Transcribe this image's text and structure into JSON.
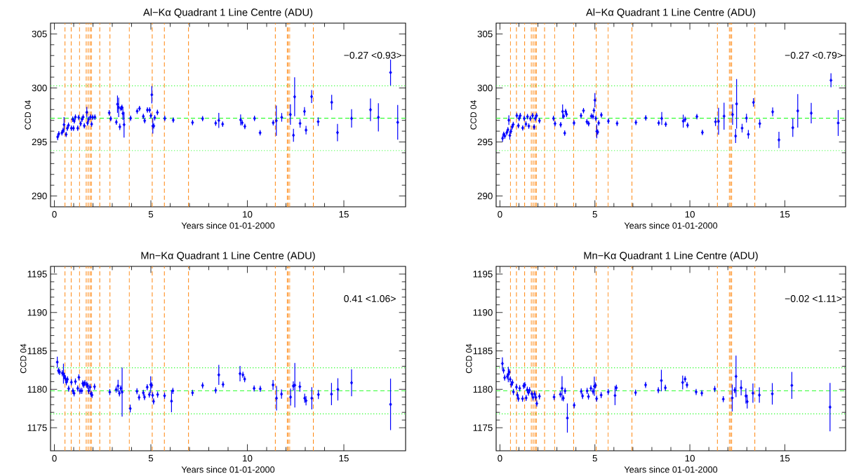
{
  "chart_data": [
    {
      "type": "scatter",
      "title": "Al−Kα Quadrant 1 Line Centre (ADU)",
      "xlabel": "Years since 01-01-2000",
      "ylabel": "CCD 04",
      "annotations": [
        "−0.27 <0.93>"
      ],
      "marker": "diamond",
      "color": "#0000ff",
      "x": [
        0.17,
        0.23,
        0.39,
        0.45,
        0.5,
        0.61,
        0.67,
        0.73,
        0.88,
        0.95,
        0.99,
        1.03,
        1.09,
        1.21,
        1.26,
        1.36,
        1.43,
        1.49,
        1.55,
        1.68,
        1.72,
        1.77,
        1.87,
        1.93,
        1.98,
        2.1,
        2.84,
        2.92,
        3.21,
        3.27,
        3.33,
        3.39,
        3.45,
        3.5,
        3.55,
        3.61,
        3.95,
        4.29,
        4.41,
        4.61,
        4.68,
        4.82,
        4.94,
        5.0,
        5.05,
        5.1,
        5.15,
        5.2,
        5.34,
        5.72,
        6.16,
        7.16,
        7.68,
        8.36,
        8.52,
        8.72,
        9.65,
        9.73,
        9.87,
        10.37,
        10.66,
        11.34,
        11.5,
        11.78,
        12.23,
        12.39,
        12.45,
        12.73,
        12.96,
        13.04,
        13.33,
        13.67,
        14.37,
        14.67,
        15.4,
        16.38,
        16.79,
        17.42,
        17.79
      ],
      "values": [
        295.47,
        295.75,
        295.85,
        296.06,
        296.6,
        295.7,
        296.27,
        296.55,
        296.27,
        297.1,
        296.27,
        296.95,
        297.3,
        296.27,
        297.27,
        296.7,
        297.1,
        297.3,
        296.5,
        297.75,
        296.76,
        297.1,
        297.3,
        296.65,
        297.28,
        297.3,
        297.7,
        297.16,
        296.84,
        298.5,
        298.2,
        296.4,
        298.1,
        298.2,
        297.64,
        296.6,
        297.2,
        297.85,
        298.1,
        297.37,
        296.97,
        297.96,
        297.96,
        297.43,
        299.37,
        296.48,
        296.48,
        297.24,
        297.73,
        297.18,
        297.03,
        296.8,
        297.16,
        296.74,
        297.0,
        296.65,
        297.05,
        296.78,
        296.44,
        297.18,
        295.85,
        296.78,
        296.97,
        297.28,
        297.54,
        295.62,
        299.18,
        296.72,
        297.83,
        296.1,
        299.2,
        296.88,
        298.67,
        295.87,
        297.18,
        297.98,
        297.28,
        301.43,
        296.82
      ],
      "errors": [
        0.3,
        0.25,
        0.25,
        0.25,
        0.7,
        0.25,
        0.25,
        0.25,
        0.25,
        0.25,
        0.25,
        0.25,
        0.25,
        0.25,
        0.25,
        0.25,
        0.25,
        0.25,
        0.25,
        0.5,
        0.25,
        0.25,
        0.25,
        0.25,
        0.25,
        0.25,
        0.25,
        0.25,
        0.25,
        0.8,
        0.9,
        0.3,
        0.25,
        0.25,
        0.6,
        1.2,
        0.25,
        0.25,
        0.25,
        0.25,
        0.25,
        0.25,
        0.25,
        0.25,
        0.8,
        0.7,
        0.25,
        0.25,
        0.25,
        0.25,
        0.25,
        0.25,
        0.25,
        0.25,
        0.7,
        0.25,
        0.5,
        0.25,
        0.25,
        0.25,
        0.25,
        0.25,
        1.4,
        0.4,
        0.95,
        0.6,
        1.8,
        0.4,
        0.4,
        0.4,
        0.6,
        0.4,
        0.7,
        0.8,
        0.85,
        1.05,
        1.3,
        1.2,
        1.6
      ],
      "xlim": [
        -0.2,
        18.2
      ],
      "ylim": [
        289,
        306
      ],
      "xticks": [
        0,
        5,
        10,
        15
      ],
      "yticks": [
        290,
        295,
        300,
        305
      ],
      "ref_lines": [
        {
          "axis": "y",
          "value": 297.2,
          "color": "#33ff33",
          "line_style": "dashed"
        },
        {
          "axis": "y",
          "value": 300.2,
          "color": "#33ff33",
          "line_style": "dotted"
        },
        {
          "axis": "y",
          "value": 294.2,
          "color": "#33ff33",
          "line_style": "dotted"
        },
        {
          "axis": "x",
          "value": 0.55,
          "color": "#ff8c1a",
          "line_style": "dashed"
        },
        {
          "axis": "x",
          "value": 0.87,
          "color": "#ff8c1a",
          "line_style": "dashed"
        },
        {
          "axis": "x",
          "value": 1.3,
          "color": "#ff8c1a",
          "line_style": "dashed"
        },
        {
          "axis": "x",
          "value": 1.65,
          "color": "#ff8c1a",
          "line_style": "dashed"
        },
        {
          "axis": "x",
          "value": 1.75,
          "color": "#ff8c1a",
          "line_style": "dashed"
        },
        {
          "axis": "x",
          "value": 1.85,
          "color": "#ff8c1a",
          "line_style": "dashed"
        },
        {
          "axis": "x",
          "value": 1.92,
          "color": "#ff8c1a",
          "line_style": "dashed"
        },
        {
          "axis": "x",
          "value": 2.35,
          "color": "#ff8c1a",
          "line_style": "dashed"
        },
        {
          "axis": "x",
          "value": 2.88,
          "color": "#ff8c1a",
          "line_style": "dashed"
        },
        {
          "axis": "x",
          "value": 3.88,
          "color": "#ff8c1a",
          "line_style": "dashed"
        },
        {
          "axis": "x",
          "value": 5.07,
          "color": "#ff8c1a",
          "line_style": "dashed"
        },
        {
          "axis": "x",
          "value": 5.7,
          "color": "#ff8c1a",
          "line_style": "dashed"
        },
        {
          "axis": "x",
          "value": 6.95,
          "color": "#ff8c1a",
          "line_style": "dashed"
        },
        {
          "axis": "x",
          "value": 11.45,
          "color": "#ff8c1a",
          "line_style": "dashed"
        },
        {
          "axis": "x",
          "value": 12.07,
          "color": "#ff8c1a",
          "line_style": "dashed"
        },
        {
          "axis": "x",
          "value": 12.13,
          "color": "#ff8c1a",
          "line_style": "dashed"
        },
        {
          "axis": "x",
          "value": 12.2,
          "color": "#ff8c1a",
          "line_style": "dashed"
        },
        {
          "axis": "x",
          "value": 13.42,
          "color": "#ff8c1a",
          "line_style": "dashed"
        }
      ]
    },
    {
      "type": "scatter",
      "title": "Al−Kα Quadrant 1 Line Centre (ADU)",
      "xlabel": "Years since 01-01-2000",
      "ylabel": "CCD 04",
      "annotations": [
        "−0.27 <0.79>"
      ],
      "marker": "diamond",
      "color": "#0000ff",
      "x": [
        0.14,
        0.2,
        0.26,
        0.36,
        0.42,
        0.47,
        0.52,
        0.58,
        0.64,
        0.7,
        0.89,
        0.97,
        1.01,
        1.07,
        1.2,
        1.28,
        1.37,
        1.45,
        1.52,
        1.6,
        1.72,
        1.8,
        1.86,
        1.93,
        2.08,
        2.82,
        2.9,
        3.2,
        3.3,
        3.36,
        3.41,
        3.46,
        3.51,
        3.9,
        4.27,
        4.4,
        4.58,
        4.67,
        4.81,
        4.9,
        4.95,
        5.0,
        5.05,
        5.1,
        5.15,
        5.2,
        5.34,
        5.71,
        6.17,
        7.16,
        7.68,
        8.36,
        8.52,
        8.73,
        9.65,
        9.75,
        9.88,
        10.37,
        10.66,
        11.35,
        11.51,
        11.8,
        12.25,
        12.41,
        12.46,
        12.75,
        12.98,
        13.08,
        13.35,
        13.68,
        14.36,
        14.69,
        15.42,
        15.68,
        16.39,
        17.43,
        17.81
      ],
      "values": [
        295.34,
        295.71,
        295.55,
        295.86,
        296.13,
        297.02,
        295.61,
        295.99,
        296.39,
        296.62,
        297.44,
        296.51,
        297.18,
        297.44,
        296.3,
        297.18,
        296.66,
        297.35,
        296.47,
        297.18,
        297.44,
        296.39,
        297.18,
        297.44,
        296.97,
        297.18,
        296.7,
        296.6,
        297.82,
        297.39,
        295.82,
        297.82,
        297.56,
        296.76,
        297.44,
        297.9,
        296.87,
        296.7,
        297.39,
        297.35,
        297.92,
        298.87,
        297.18,
        295.99,
        295.92,
        296.76,
        297.5,
        296.93,
        296.72,
        296.81,
        297.23,
        296.76,
        297.18,
        296.64,
        296.93,
        297.08,
        296.55,
        297.35,
        295.88,
        296.87,
        296.91,
        297.39,
        297.54,
        295.55,
        298.53,
        296.28,
        297.21,
        295.71,
        298.66,
        296.7,
        297.79,
        295.19,
        296.32,
        297.88,
        297.67,
        300.71,
        296.76
      ],
      "errors": [
        0.3,
        0.25,
        0.25,
        0.25,
        0.25,
        0.45,
        0.4,
        0.25,
        0.25,
        0.25,
        0.25,
        0.25,
        0.25,
        0.25,
        0.25,
        0.25,
        0.25,
        0.25,
        0.25,
        0.25,
        0.25,
        0.25,
        0.25,
        0.25,
        0.25,
        0.25,
        0.25,
        0.25,
        0.65,
        0.25,
        0.25,
        0.25,
        0.25,
        0.25,
        0.25,
        0.25,
        0.25,
        0.25,
        0.25,
        0.25,
        0.25,
        0.65,
        0.25,
        0.65,
        0.25,
        0.25,
        0.25,
        0.25,
        0.25,
        0.25,
        0.25,
        0.25,
        0.6,
        0.25,
        0.6,
        0.25,
        0.25,
        0.25,
        0.25,
        0.4,
        1.25,
        1.25,
        0.95,
        0.65,
        2.3,
        0.4,
        0.4,
        0.4,
        0.4,
        0.4,
        0.4,
        0.75,
        0.85,
        1.55,
        0.95,
        0.65,
        1.2
      ],
      "xlim": [
        -0.2,
        18.2
      ],
      "ylim": [
        289,
        306
      ],
      "xticks": [
        0,
        5,
        10,
        15
      ],
      "yticks": [
        290,
        295,
        300,
        305
      ],
      "ref_lines": [
        {
          "axis": "y",
          "value": 297.2,
          "color": "#33ff33",
          "line_style": "dashed"
        },
        {
          "axis": "y",
          "value": 300.2,
          "color": "#33ff33",
          "line_style": "dotted"
        },
        {
          "axis": "y",
          "value": 294.2,
          "color": "#33ff33",
          "line_style": "dotted"
        },
        {
          "axis": "x",
          "value": 0.55,
          "color": "#ff8c1a",
          "line_style": "dashed"
        },
        {
          "axis": "x",
          "value": 0.87,
          "color": "#ff8c1a",
          "line_style": "dashed"
        },
        {
          "axis": "x",
          "value": 1.3,
          "color": "#ff8c1a",
          "line_style": "dashed"
        },
        {
          "axis": "x",
          "value": 1.65,
          "color": "#ff8c1a",
          "line_style": "dashed"
        },
        {
          "axis": "x",
          "value": 1.75,
          "color": "#ff8c1a",
          "line_style": "dashed"
        },
        {
          "axis": "x",
          "value": 1.85,
          "color": "#ff8c1a",
          "line_style": "dashed"
        },
        {
          "axis": "x",
          "value": 1.92,
          "color": "#ff8c1a",
          "line_style": "dashed"
        },
        {
          "axis": "x",
          "value": 2.35,
          "color": "#ff8c1a",
          "line_style": "dashed"
        },
        {
          "axis": "x",
          "value": 2.88,
          "color": "#ff8c1a",
          "line_style": "dashed"
        },
        {
          "axis": "x",
          "value": 3.88,
          "color": "#ff8c1a",
          "line_style": "dashed"
        },
        {
          "axis": "x",
          "value": 5.07,
          "color": "#ff8c1a",
          "line_style": "dashed"
        },
        {
          "axis": "x",
          "value": 5.7,
          "color": "#ff8c1a",
          "line_style": "dashed"
        },
        {
          "axis": "x",
          "value": 6.95,
          "color": "#ff8c1a",
          "line_style": "dashed"
        },
        {
          "axis": "x",
          "value": 11.45,
          "color": "#ff8c1a",
          "line_style": "dashed"
        },
        {
          "axis": "x",
          "value": 12.07,
          "color": "#ff8c1a",
          "line_style": "dashed"
        },
        {
          "axis": "x",
          "value": 12.13,
          "color": "#ff8c1a",
          "line_style": "dashed"
        },
        {
          "axis": "x",
          "value": 12.2,
          "color": "#ff8c1a",
          "line_style": "dashed"
        },
        {
          "axis": "x",
          "value": 13.42,
          "color": "#ff8c1a",
          "line_style": "dashed"
        }
      ]
    },
    {
      "type": "scatter",
      "title": "Mn−Kα Quadrant 1 Line Centre (ADU)",
      "xlabel": "Years since 01-01-2000",
      "ylabel": "CCD 04",
      "annotations": [
        "0.41 <1.06>"
      ],
      "marker": "diamond",
      "color": "#0000ff",
      "x": [
        0.15,
        0.21,
        0.27,
        0.41,
        0.47,
        0.52,
        0.57,
        0.62,
        0.68,
        0.74,
        0.88,
        0.96,
        1.02,
        1.09,
        1.21,
        1.27,
        1.33,
        1.42,
        1.47,
        1.52,
        1.58,
        1.68,
        1.73,
        1.78,
        1.85,
        1.9,
        1.95,
        2.08,
        2.87,
        3.2,
        3.3,
        3.37,
        3.44,
        3.51,
        3.93,
        4.28,
        4.39,
        4.61,
        4.67,
        4.81,
        4.92,
        4.99,
        5.04,
        5.09,
        5.14,
        5.35,
        5.71,
        6.07,
        6.14,
        7.16,
        7.68,
        8.36,
        8.52,
        8.74,
        9.62,
        9.77,
        9.86,
        10.35,
        10.67,
        11.33,
        11.51,
        11.77,
        12.24,
        12.38,
        12.46,
        12.72,
        12.97,
        13.04,
        13.34,
        13.68,
        14.36,
        14.69,
        15.4,
        17.42
      ],
      "values": [
        1183.54,
        1182.42,
        1182.26,
        1182.1,
        1182.04,
        1181.72,
        1181.4,
        1180.92,
        1181.3,
        1180.09,
        1180.92,
        1179.8,
        1179.48,
        1181.01,
        1180.12,
        1181.56,
        1179.8,
        1179.8,
        1180.76,
        1180.6,
        1180.82,
        1180.6,
        1180.44,
        1179.8,
        1180.28,
        1179.42,
        1179.26,
        1180.34,
        1179.64,
        1179.96,
        1180.44,
        1179.48,
        1180.12,
        1179.64,
        1177.5,
        1179.74,
        1178.94,
        1179.54,
        1178.99,
        1180.28,
        1179.32,
        1180.6,
        1180.53,
        1179.22,
        1178.43,
        1179.32,
        1179.16,
        1178.46,
        1179.8,
        1179.54,
        1180.5,
        1179.86,
        1181.88,
        1180.63,
        1182.04,
        1181.88,
        1181.33,
        1180.12,
        1180.06,
        1180.57,
        1178.84,
        1179.38,
        1178.99,
        1180.44,
        1180.53,
        1180.34,
        1178.84,
        1178.52,
        1178.84,
        1179.32,
        1179.38,
        1179.99,
        1180.85,
        1178.04
      ],
      "errors": [
        0.7,
        0.4,
        0.4,
        0.4,
        1.3,
        0.4,
        0.4,
        0.4,
        0.4,
        0.4,
        0.4,
        0.4,
        0.4,
        0.4,
        0.4,
        0.4,
        0.4,
        0.4,
        0.4,
        0.4,
        0.4,
        0.4,
        0.4,
        0.4,
        0.4,
        0.4,
        0.4,
        0.4,
        0.4,
        0.4,
        0.8,
        0.4,
        0.4,
        3.2,
        0.5,
        0.4,
        0.4,
        0.4,
        0.4,
        0.4,
        0.4,
        1.1,
        0.4,
        0.4,
        0.4,
        0.4,
        0.4,
        1.45,
        0.4,
        0.4,
        0.4,
        0.4,
        1.3,
        0.4,
        1.0,
        0.4,
        0.4,
        0.4,
        0.4,
        0.65,
        1.6,
        0.6,
        1.1,
        0.6,
        2.9,
        0.65,
        0.6,
        0.6,
        1.45,
        0.6,
        1.45,
        1.45,
        1.75,
        3.35
      ],
      "xlim": [
        -0.2,
        18.2
      ],
      "ylim": [
        1172,
        1196
      ],
      "xticks": [
        0,
        5,
        10,
        15
      ],
      "yticks": [
        1175,
        1180,
        1185,
        1190,
        1195
      ],
      "ref_lines": [
        {
          "axis": "y",
          "value": 1179.8,
          "color": "#33ff33",
          "line_style": "dashed"
        },
        {
          "axis": "y",
          "value": 1182.8,
          "color": "#33ff33",
          "line_style": "dotted"
        },
        {
          "axis": "y",
          "value": 1176.8,
          "color": "#33ff33",
          "line_style": "dotted"
        },
        {
          "axis": "x",
          "value": 0.55,
          "color": "#ff8c1a",
          "line_style": "dashed"
        },
        {
          "axis": "x",
          "value": 0.87,
          "color": "#ff8c1a",
          "line_style": "dashed"
        },
        {
          "axis": "x",
          "value": 1.3,
          "color": "#ff8c1a",
          "line_style": "dashed"
        },
        {
          "axis": "x",
          "value": 1.65,
          "color": "#ff8c1a",
          "line_style": "dashed"
        },
        {
          "axis": "x",
          "value": 1.75,
          "color": "#ff8c1a",
          "line_style": "dashed"
        },
        {
          "axis": "x",
          "value": 1.85,
          "color": "#ff8c1a",
          "line_style": "dashed"
        },
        {
          "axis": "x",
          "value": 1.92,
          "color": "#ff8c1a",
          "line_style": "dashed"
        },
        {
          "axis": "x",
          "value": 2.35,
          "color": "#ff8c1a",
          "line_style": "dashed"
        },
        {
          "axis": "x",
          "value": 2.88,
          "color": "#ff8c1a",
          "line_style": "dashed"
        },
        {
          "axis": "x",
          "value": 3.88,
          "color": "#ff8c1a",
          "line_style": "dashed"
        },
        {
          "axis": "x",
          "value": 5.07,
          "color": "#ff8c1a",
          "line_style": "dashed"
        },
        {
          "axis": "x",
          "value": 5.7,
          "color": "#ff8c1a",
          "line_style": "dashed"
        },
        {
          "axis": "x",
          "value": 6.95,
          "color": "#ff8c1a",
          "line_style": "dashed"
        },
        {
          "axis": "x",
          "value": 11.45,
          "color": "#ff8c1a",
          "line_style": "dashed"
        },
        {
          "axis": "x",
          "value": 12.07,
          "color": "#ff8c1a",
          "line_style": "dashed"
        },
        {
          "axis": "x",
          "value": 12.13,
          "color": "#ff8c1a",
          "line_style": "dashed"
        },
        {
          "axis": "x",
          "value": 12.2,
          "color": "#ff8c1a",
          "line_style": "dashed"
        },
        {
          "axis": "x",
          "value": 13.42,
          "color": "#ff8c1a",
          "line_style": "dashed"
        }
      ]
    },
    {
      "type": "scatter",
      "title": "Mn−Kα Quadrant 1 Line Centre (ADU)",
      "xlabel": "Years since 01-01-2000",
      "ylabel": "CCD 04",
      "annotations": [
        "−0.02 <1.11>"
      ],
      "marker": "diamond",
      "color": "#0000ff",
      "x": [
        0.13,
        0.19,
        0.25,
        0.39,
        0.44,
        0.49,
        0.54,
        0.6,
        0.66,
        0.71,
        0.87,
        0.92,
        0.97,
        1.04,
        1.19,
        1.25,
        1.31,
        1.38,
        1.44,
        1.5,
        1.56,
        1.68,
        1.74,
        1.83,
        1.89,
        1.94,
        2.08,
        2.85,
        3.18,
        3.27,
        3.34,
        3.43,
        3.55,
        3.91,
        4.28,
        4.35,
        4.59,
        4.66,
        4.79,
        4.9,
        4.97,
        5.03,
        5.09,
        5.33,
        5.7,
        6.06,
        6.13,
        7.14,
        7.67,
        8.34,
        8.5,
        8.71,
        9.62,
        9.75,
        9.85,
        10.33,
        10.63,
        11.31,
        11.76,
        12.23,
        12.36,
        12.43,
        12.7,
        12.95,
        13.02,
        13.32,
        13.66,
        14.34,
        15.37,
        17.38
      ],
      "values": [
        1183.35,
        1182.46,
        1181.52,
        1181.68,
        1181.93,
        1182.24,
        1181.3,
        1180.64,
        1180.89,
        1179.66,
        1180.29,
        1179.25,
        1178.78,
        1180.13,
        1178.78,
        1180.45,
        1180.57,
        1178.87,
        1179.94,
        1179.57,
        1179.88,
        1179.41,
        1178.94,
        1179.41,
        1178.94,
        1178.15,
        1179.09,
        1179.0,
        1179.35,
        1180.13,
        1178.84,
        1179.79,
        1176.26,
        1177.93,
        1179.73,
        1179.13,
        1179.79,
        1179.06,
        1180.13,
        1179.73,
        1180.39,
        1180.51,
        1178.78,
        1179.25,
        1179.66,
        1179.19,
        1180.2,
        1179.57,
        1180.57,
        1179.88,
        1181.14,
        1180.2,
        1180.89,
        1181.33,
        1180.57,
        1179.66,
        1179.5,
        1180.04,
        1178.72,
        1178.87,
        1179.88,
        1181.68,
        1180.2,
        1179.13,
        1178.4,
        1179.5,
        1179.25,
        1179.41,
        1180.51,
        1177.68
      ],
      "errors": [
        0.8,
        0.4,
        0.4,
        0.4,
        1.0,
        0.4,
        0.4,
        0.4,
        0.4,
        0.4,
        0.4,
        0.4,
        0.4,
        0.4,
        0.4,
        0.4,
        0.4,
        0.4,
        0.4,
        0.4,
        0.4,
        0.4,
        0.4,
        0.4,
        0.4,
        0.4,
        0.4,
        0.4,
        0.4,
        1.6,
        0.4,
        0.4,
        1.9,
        0.4,
        0.4,
        0.4,
        0.4,
        0.4,
        0.4,
        0.4,
        1.25,
        0.4,
        0.4,
        0.4,
        0.4,
        1.25,
        0.4,
        0.4,
        0.4,
        0.4,
        1.4,
        0.4,
        0.9,
        0.4,
        0.4,
        0.4,
        0.4,
        0.4,
        0.4,
        1.75,
        0.4,
        2.7,
        1.0,
        1.0,
        0.9,
        1.25,
        1.0,
        1.4,
        1.75,
        3.15
      ],
      "xlim": [
        -0.2,
        18.2
      ],
      "ylim": [
        1172,
        1196
      ],
      "xticks": [
        0,
        5,
        10,
        15
      ],
      "yticks": [
        1175,
        1180,
        1185,
        1190,
        1195
      ],
      "ref_lines": [
        {
          "axis": "y",
          "value": 1179.8,
          "color": "#33ff33",
          "line_style": "dashed"
        },
        {
          "axis": "y",
          "value": 1182.8,
          "color": "#33ff33",
          "line_style": "dotted"
        },
        {
          "axis": "y",
          "value": 1176.8,
          "color": "#33ff33",
          "line_style": "dotted"
        },
        {
          "axis": "x",
          "value": 0.55,
          "color": "#ff8c1a",
          "line_style": "dashed"
        },
        {
          "axis": "x",
          "value": 0.87,
          "color": "#ff8c1a",
          "line_style": "dashed"
        },
        {
          "axis": "x",
          "value": 1.3,
          "color": "#ff8c1a",
          "line_style": "dashed"
        },
        {
          "axis": "x",
          "value": 1.65,
          "color": "#ff8c1a",
          "line_style": "dashed"
        },
        {
          "axis": "x",
          "value": 1.75,
          "color": "#ff8c1a",
          "line_style": "dashed"
        },
        {
          "axis": "x",
          "value": 1.85,
          "color": "#ff8c1a",
          "line_style": "dashed"
        },
        {
          "axis": "x",
          "value": 1.92,
          "color": "#ff8c1a",
          "line_style": "dashed"
        },
        {
          "axis": "x",
          "value": 2.35,
          "color": "#ff8c1a",
          "line_style": "dashed"
        },
        {
          "axis": "x",
          "value": 2.88,
          "color": "#ff8c1a",
          "line_style": "dashed"
        },
        {
          "axis": "x",
          "value": 3.88,
          "color": "#ff8c1a",
          "line_style": "dashed"
        },
        {
          "axis": "x",
          "value": 5.07,
          "color": "#ff8c1a",
          "line_style": "dashed"
        },
        {
          "axis": "x",
          "value": 5.7,
          "color": "#ff8c1a",
          "line_style": "dashed"
        },
        {
          "axis": "x",
          "value": 6.95,
          "color": "#ff8c1a",
          "line_style": "dashed"
        },
        {
          "axis": "x",
          "value": 11.45,
          "color": "#ff8c1a",
          "line_style": "dashed"
        },
        {
          "axis": "x",
          "value": 12.07,
          "color": "#ff8c1a",
          "line_style": "dashed"
        },
        {
          "axis": "x",
          "value": 12.13,
          "color": "#ff8c1a",
          "line_style": "dashed"
        },
        {
          "axis": "x",
          "value": 12.2,
          "color": "#ff8c1a",
          "line_style": "dashed"
        },
        {
          "axis": "x",
          "value": 13.42,
          "color": "#ff8c1a",
          "line_style": "dashed"
        }
      ]
    }
  ]
}
